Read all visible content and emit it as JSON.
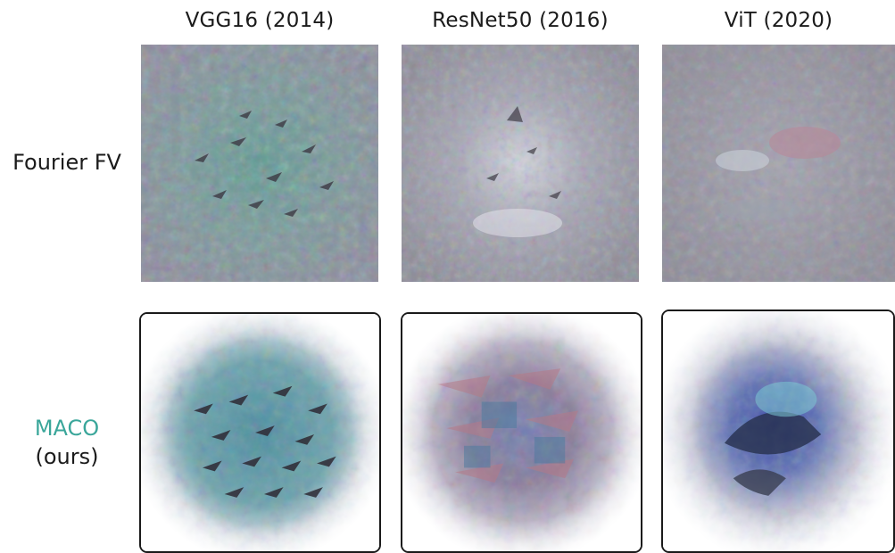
{
  "columns": [
    {
      "label": "VGG16 (2014)"
    },
    {
      "label": "ResNet50 (2016)"
    },
    {
      "label": "ViT (2020)"
    }
  ],
  "rows": [
    {
      "label_lines": [
        "Fourier FV"
      ],
      "color": "#1b1b1b"
    },
    {
      "label_lines": [
        "MACO",
        "(ours)"
      ],
      "colors": [
        "#3aa69a",
        "#1b1b1b"
      ]
    }
  ],
  "colors": {
    "maco_accent": "#3aa69a",
    "fourier_bg": "#8c8c98",
    "panel_border": "#1a1a1a"
  },
  "panels": {
    "fourier": [
      "vgg16-fourier-visualization",
      "resnet50-fourier-visualization",
      "vit-fourier-visualization"
    ],
    "maco": [
      "vgg16-maco-visualization",
      "resnet50-maco-visualization",
      "vit-maco-visualization"
    ]
  }
}
